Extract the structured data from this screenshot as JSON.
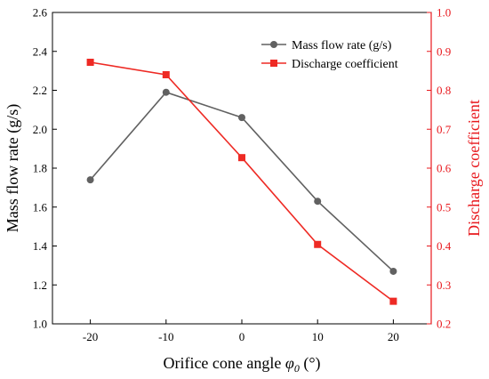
{
  "chart_data": {
    "type": "line",
    "title": "",
    "xlabel": {
      "prefix": "Orifice cone angle ",
      "symbol": "φ",
      "subscript": "0",
      "unit": " (°)"
    },
    "x": [
      -20,
      -10,
      0,
      10,
      20
    ],
    "x_ticks": [
      "-20",
      "-10",
      "0",
      "10",
      "20"
    ],
    "xlim": [
      -25,
      25
    ],
    "left_axis": {
      "label": "Mass flow rate (g/s)",
      "ylim": [
        1.0,
        2.6
      ],
      "ticks": [
        "1.0",
        "1.2",
        "1.4",
        "1.6",
        "1.8",
        "2.0",
        "2.2",
        "2.4",
        "2.6"
      ],
      "color": "#000000"
    },
    "right_axis": {
      "label": "Discharge coefficient",
      "ylim": [
        0.2,
        1.0
      ],
      "ticks": [
        "0.2",
        "0.3",
        "0.4",
        "0.5",
        "0.6",
        "0.7",
        "0.8",
        "0.9",
        "1.0"
      ],
      "color": "#e8181d"
    },
    "series": [
      {
        "name": "Mass flow rate (g/s)",
        "axis": "left",
        "color": "#616161",
        "marker": "circle",
        "values": [
          1.74,
          2.19,
          2.06,
          1.63,
          1.27
        ]
      },
      {
        "name": "Discharge coefficient",
        "axis": "right",
        "color": "#ee2a24",
        "marker": "square",
        "values": [
          0.872,
          0.84,
          0.627,
          0.404,
          0.258
        ]
      }
    ],
    "grid": false,
    "legend_position": "top-right"
  }
}
